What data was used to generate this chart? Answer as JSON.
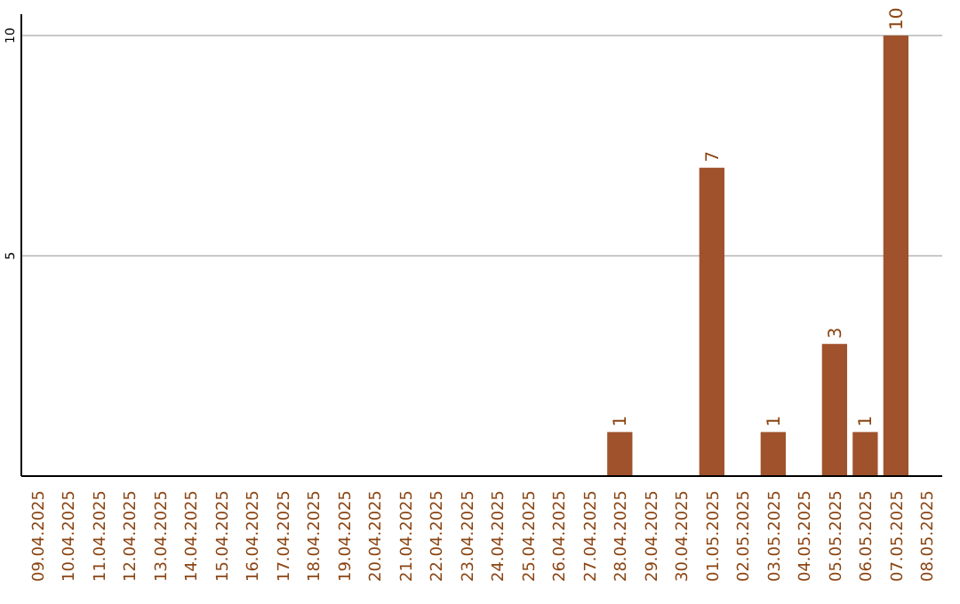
{
  "chart_data": {
    "type": "bar",
    "categories": [
      "09.04.2025",
      "10.04.2025",
      "11.04.2025",
      "12.04.2025",
      "13.04.2025",
      "14.04.2025",
      "15.04.2025",
      "16.04.2025",
      "17.04.2025",
      "18.04.2025",
      "19.04.2025",
      "20.04.2025",
      "21.04.2025",
      "22.04.2025",
      "23.04.2025",
      "24.04.2025",
      "25.04.2025",
      "26.04.2025",
      "27.04.2025",
      "28.04.2025",
      "29.04.2025",
      "30.04.2025",
      "01.05.2025",
      "02.05.2025",
      "03.05.2025",
      "04.05.2025",
      "05.05.2025",
      "06.05.2025",
      "07.05.2025",
      "08.05.2025"
    ],
    "values": [
      0,
      0,
      0,
      0,
      0,
      0,
      0,
      0,
      0,
      0,
      0,
      0,
      0,
      0,
      0,
      0,
      0,
      0,
      0,
      1,
      0,
      0,
      7,
      0,
      1,
      0,
      3,
      1,
      10,
      0
    ],
    "value_labels": [
      null,
      null,
      null,
      null,
      null,
      null,
      null,
      null,
      null,
      null,
      null,
      null,
      null,
      null,
      null,
      null,
      null,
      null,
      null,
      "1",
      null,
      null,
      "7",
      null,
      "1",
      null,
      "3",
      "1",
      "10",
      null
    ],
    "color": "#a0522d",
    "ylim": [
      0,
      10
    ],
    "yticks": [
      5,
      10
    ],
    "grid": "y"
  }
}
